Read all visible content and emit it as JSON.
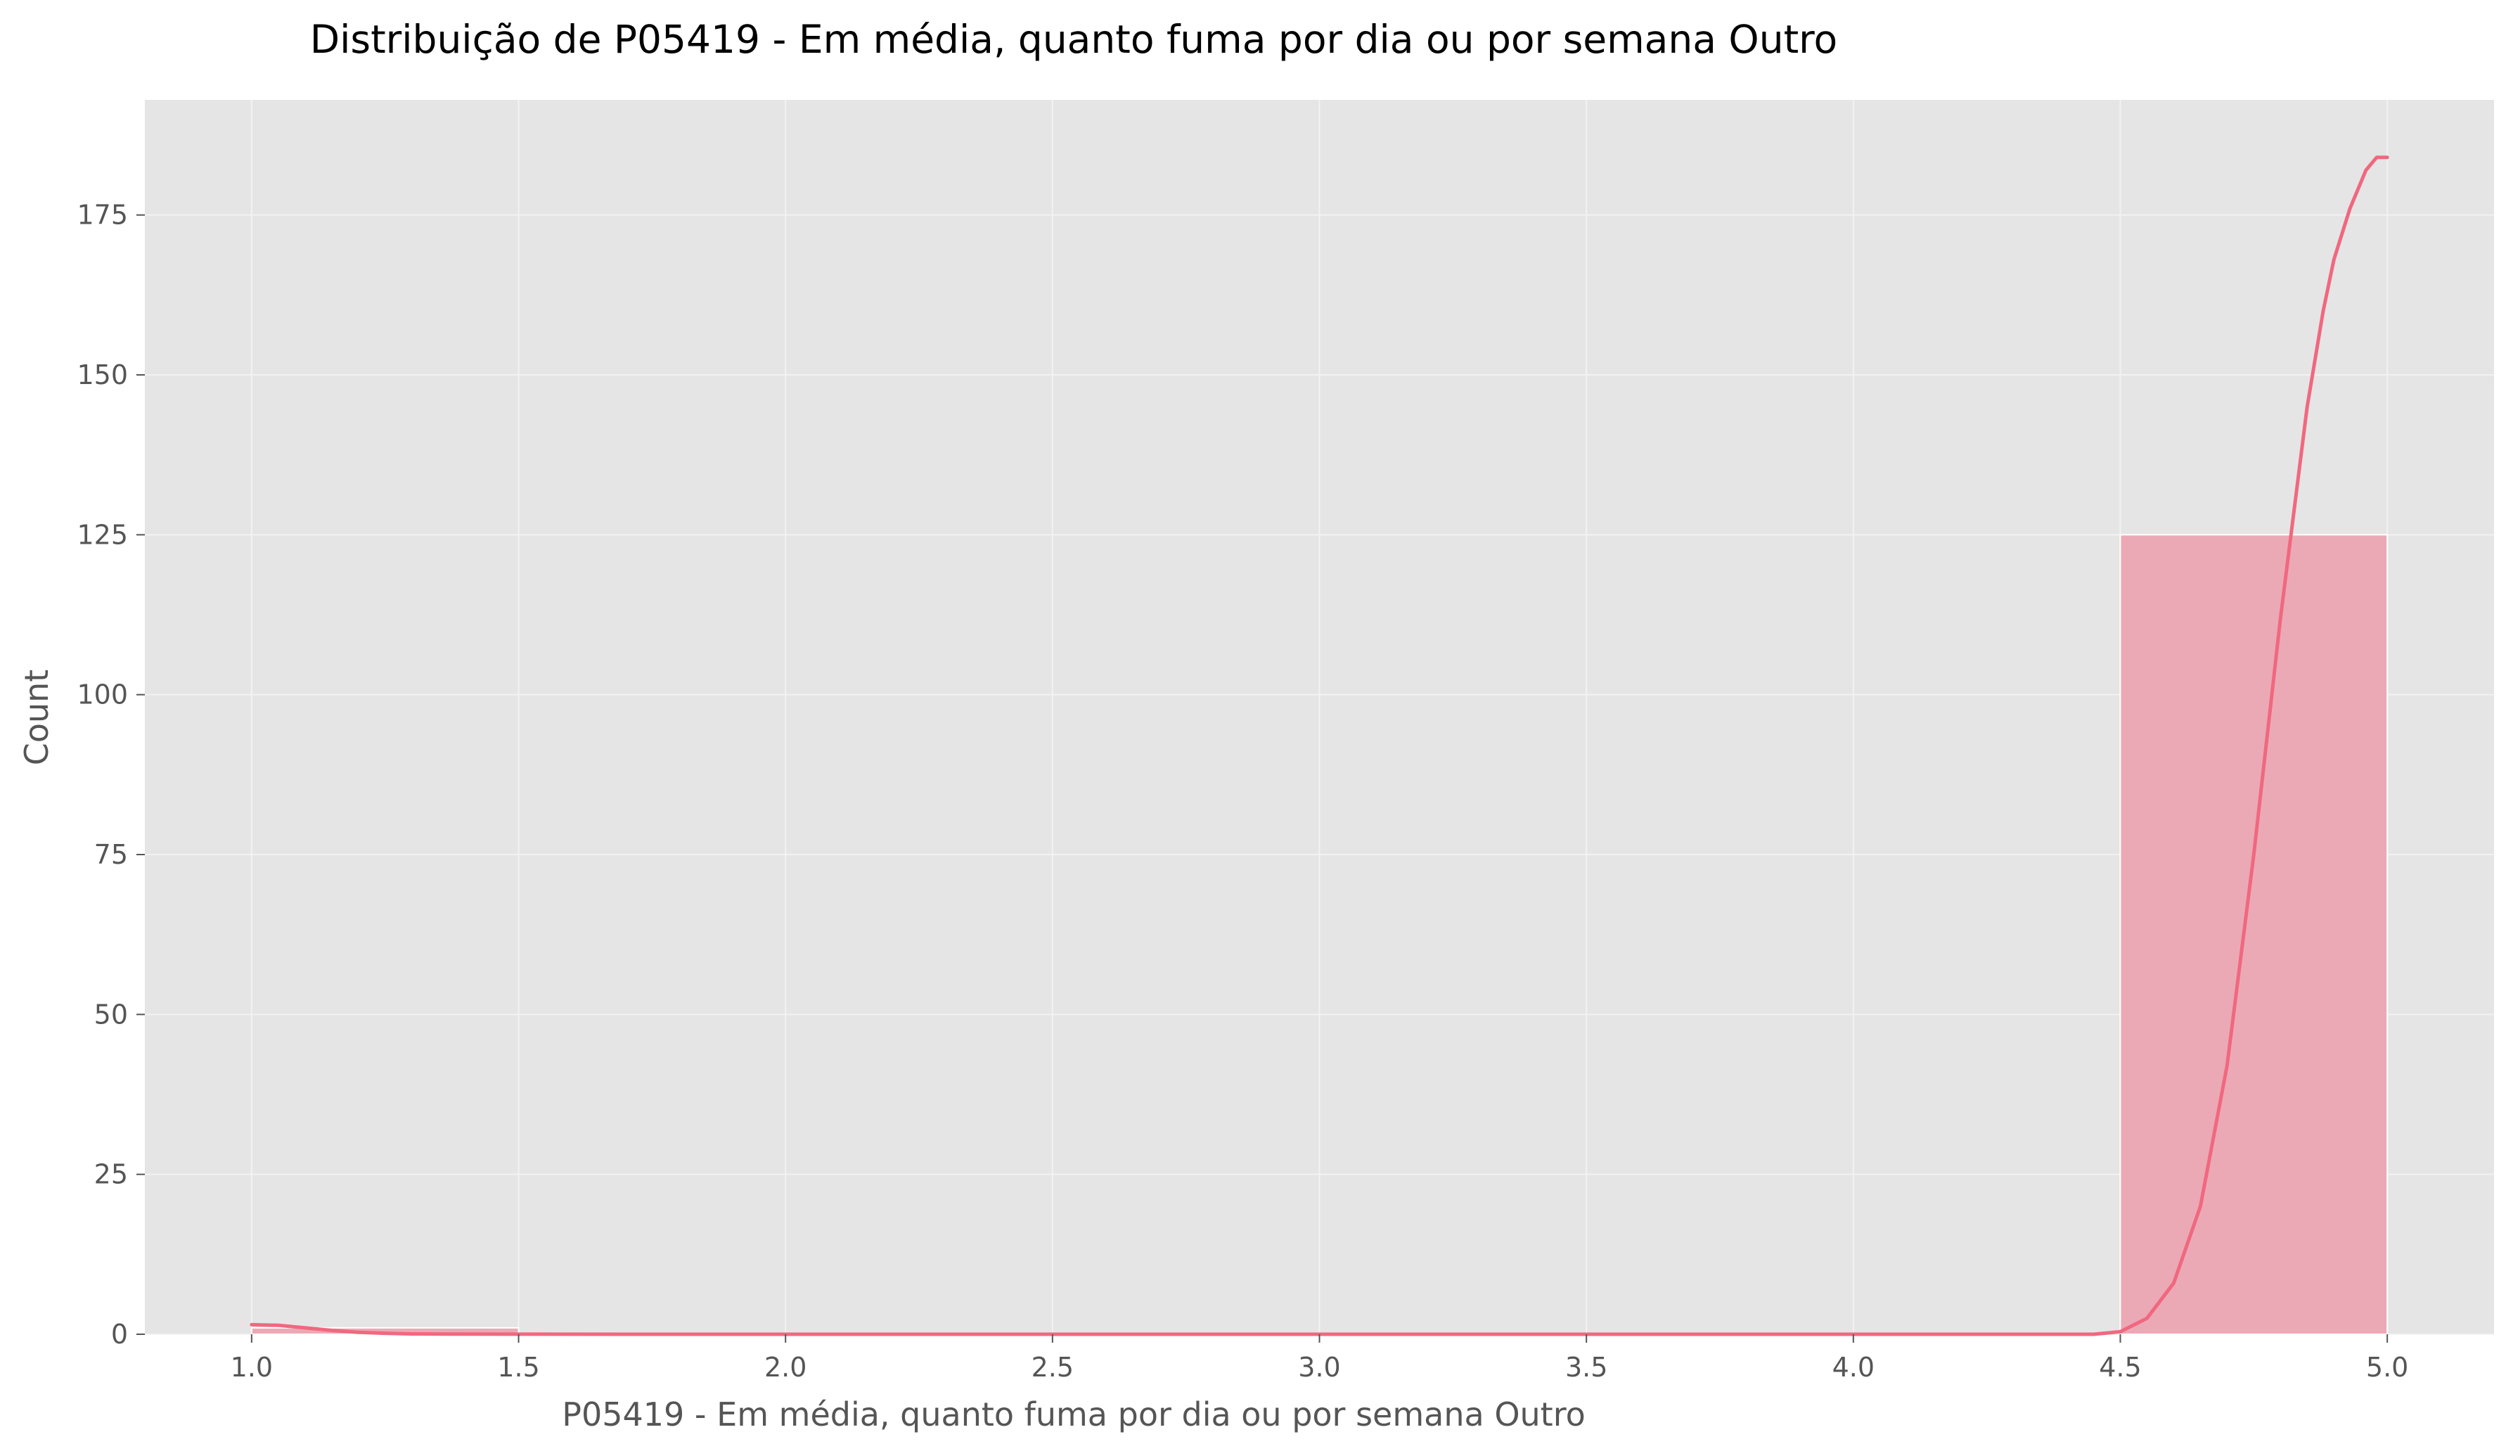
{
  "chart_data": {
    "type": "bar",
    "title": "Distribuição de P05419 - Em média, quanto fuma por dia ou por semana Outro",
    "xlabel": "P05419 - Em média, quanto fuma por dia ou por semana Outro",
    "ylabel": "Count",
    "xlim": [
      0.8,
      5.2
    ],
    "ylim": [
      0,
      193
    ],
    "x_ticks": [
      "1.0",
      "1.5",
      "2.0",
      "2.5",
      "3.0",
      "3.5",
      "4.0",
      "4.5",
      "5.0"
    ],
    "y_ticks": [
      "0",
      "25",
      "50",
      "75",
      "100",
      "125",
      "150",
      "175"
    ],
    "grid": true,
    "bins": [
      {
        "x0": 1.0,
        "x1": 1.5,
        "count": 1
      },
      {
        "x0": 1.5,
        "x1": 2.0,
        "count": 0
      },
      {
        "x0": 2.0,
        "x1": 2.5,
        "count": 0
      },
      {
        "x0": 2.5,
        "x1": 3.0,
        "count": 0
      },
      {
        "x0": 3.0,
        "x1": 3.5,
        "count": 0
      },
      {
        "x0": 3.5,
        "x1": 4.0,
        "count": 0
      },
      {
        "x0": 4.0,
        "x1": 4.5,
        "count": 0
      },
      {
        "x0": 4.5,
        "x1": 5.0,
        "count": 125
      }
    ],
    "kde": {
      "x": [
        1.0,
        1.05,
        1.1,
        1.15,
        1.2,
        1.25,
        1.3,
        1.4,
        1.5,
        2.0,
        3.0,
        4.0,
        4.45,
        4.5,
        4.55,
        4.6,
        4.65,
        4.7,
        4.75,
        4.8,
        4.85,
        4.88,
        4.9,
        4.93,
        4.96,
        4.98,
        5.0
      ],
      "y": [
        1.5,
        1.4,
        1.0,
        0.6,
        0.3,
        0.15,
        0.05,
        0.02,
        0.01,
        0.0,
        0.0,
        0.0,
        0.0,
        0.4,
        2.5,
        8,
        20,
        42,
        75,
        112,
        145,
        160,
        168,
        176,
        182,
        184,
        184
      ]
    },
    "colors": {
      "bar": "#eba9b5",
      "bar_edge": "#ffffff",
      "kde": "#f0687f",
      "plot_bg": "#e5e5e5",
      "grid": "#f2f2f2",
      "text": "#555555"
    }
  }
}
